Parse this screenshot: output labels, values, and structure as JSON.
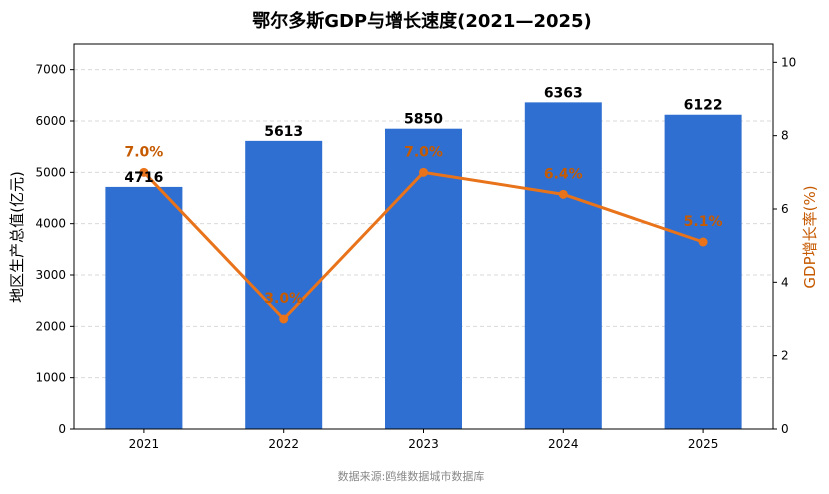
{
  "chart_data": {
    "type": "bar+line",
    "title": "鄂尔多斯GDP与增长速度(2021—2025)",
    "categories": [
      "2021",
      "2022",
      "2023",
      "2024",
      "2025"
    ],
    "series": [
      {
        "name": "地区生产总值(亿元)",
        "type": "bar",
        "axis": "left",
        "values": [
          4716,
          5613,
          5850,
          6363,
          6122
        ],
        "labels": [
          "4716",
          "5613",
          "5850",
          "6363",
          "6122"
        ]
      },
      {
        "name": "GDP增长率(%)",
        "type": "line",
        "axis": "right",
        "values": [
          7.0,
          3.0,
          7.0,
          6.4,
          5.1
        ],
        "labels": [
          "7.0%",
          "3.0%",
          "7.0%",
          "6.4%",
          "5.1%"
        ]
      }
    ],
    "ylabel": "地区生产总值(亿元)",
    "y2label": "GDP增长率(%)",
    "ylim": [
      0,
      7500
    ],
    "y_ticks": [
      0,
      1000,
      2000,
      3000,
      4000,
      5000,
      6000,
      7000
    ],
    "y2lim": [
      0,
      10.5
    ],
    "y2_ticks": [
      0,
      2,
      4,
      6,
      8,
      10
    ],
    "grid": "horizontal dashed",
    "source": "数据来源:鸥维数据城市数据库",
    "colors": {
      "bar": "#2f6fd1",
      "line": "#e8731a",
      "rate_label": "#c65a00"
    }
  }
}
